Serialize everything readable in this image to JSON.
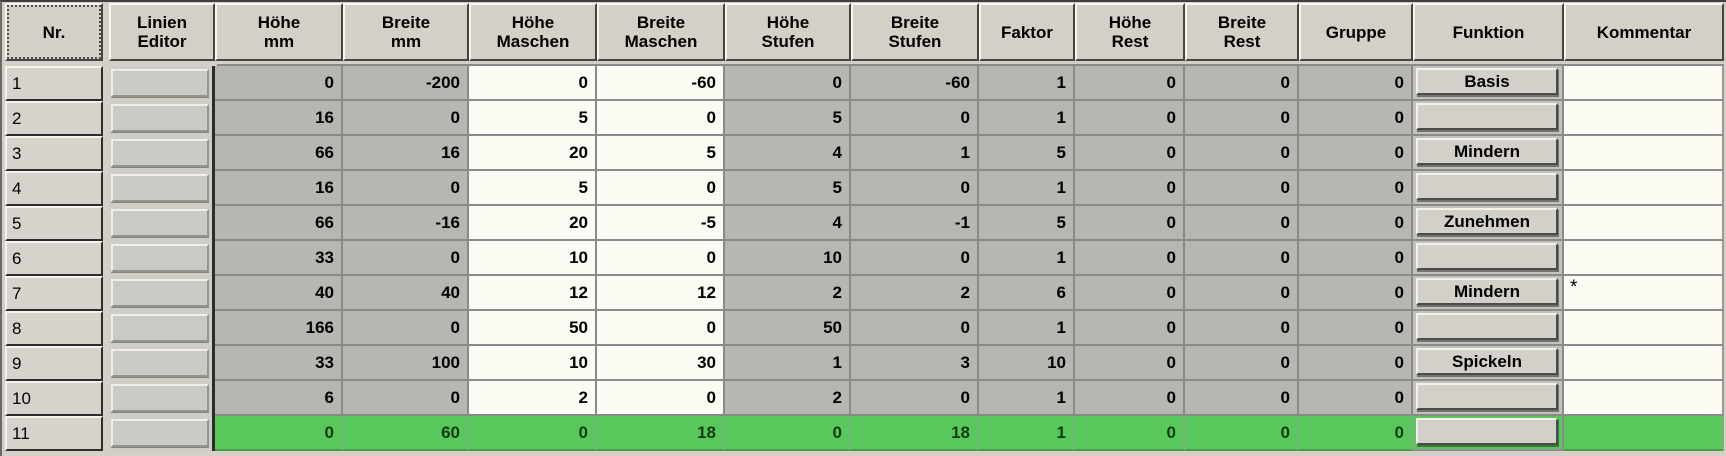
{
  "table": {
    "columns": [
      {
        "id": "nr",
        "label": "Nr."
      },
      {
        "id": "linien_editor",
        "label": "Linien\nEditor"
      },
      {
        "id": "hoehe_mm",
        "label": "Höhe\nmm"
      },
      {
        "id": "breite_mm",
        "label": "Breite\nmm"
      },
      {
        "id": "hoehe_maschen",
        "label": "Höhe\nMaschen"
      },
      {
        "id": "breite_maschen",
        "label": "Breite\nMaschen"
      },
      {
        "id": "hoehe_stufen",
        "label": "Höhe\nStufen"
      },
      {
        "id": "breite_stufen",
        "label": "Breite\nStufen"
      },
      {
        "id": "faktor",
        "label": "Faktor"
      },
      {
        "id": "hoehe_rest",
        "label": "Höhe\nRest"
      },
      {
        "id": "breite_rest",
        "label": "Breite\nRest"
      },
      {
        "id": "gruppe",
        "label": "Gruppe"
      },
      {
        "id": "funktion",
        "label": "Funktion"
      },
      {
        "id": "kommentar",
        "label": "Kommentar"
      }
    ],
    "value_column_ids": [
      "hoehe_mm",
      "breite_mm",
      "hoehe_maschen",
      "breite_maschen",
      "hoehe_stufen",
      "breite_stufen",
      "faktor",
      "hoehe_rest",
      "breite_rest",
      "gruppe"
    ],
    "white_column_ids": [
      "hoehe_maschen",
      "breite_maschen"
    ],
    "rows": [
      {
        "nr": "1",
        "hoehe_mm": "0",
        "breite_mm": "-200",
        "hoehe_maschen": "0",
        "breite_maschen": "-60",
        "hoehe_stufen": "0",
        "breite_stufen": "-60",
        "faktor": "1",
        "hoehe_rest": "0",
        "breite_rest": "0",
        "gruppe": "0",
        "funktion": "Basis",
        "kommentar": "",
        "highlight": false
      },
      {
        "nr": "2",
        "hoehe_mm": "16",
        "breite_mm": "0",
        "hoehe_maschen": "5",
        "breite_maschen": "0",
        "hoehe_stufen": "5",
        "breite_stufen": "0",
        "faktor": "1",
        "hoehe_rest": "0",
        "breite_rest": "0",
        "gruppe": "0",
        "funktion": "",
        "kommentar": "",
        "highlight": false
      },
      {
        "nr": "3",
        "hoehe_mm": "66",
        "breite_mm": "16",
        "hoehe_maschen": "20",
        "breite_maschen": "5",
        "hoehe_stufen": "4",
        "breite_stufen": "1",
        "faktor": "5",
        "hoehe_rest": "0",
        "breite_rest": "0",
        "gruppe": "0",
        "funktion": "Mindern",
        "kommentar": "",
        "highlight": false
      },
      {
        "nr": "4",
        "hoehe_mm": "16",
        "breite_mm": "0",
        "hoehe_maschen": "5",
        "breite_maschen": "0",
        "hoehe_stufen": "5",
        "breite_stufen": "0",
        "faktor": "1",
        "hoehe_rest": "0",
        "breite_rest": "0",
        "gruppe": "0",
        "funktion": "",
        "kommentar": "",
        "highlight": false
      },
      {
        "nr": "5",
        "hoehe_mm": "66",
        "breite_mm": "-16",
        "hoehe_maschen": "20",
        "breite_maschen": "-5",
        "hoehe_stufen": "4",
        "breite_stufen": "-1",
        "faktor": "5",
        "hoehe_rest": "0",
        "breite_rest": "0",
        "gruppe": "0",
        "funktion": "Zunehmen",
        "kommentar": "",
        "highlight": false
      },
      {
        "nr": "6",
        "hoehe_mm": "33",
        "breite_mm": "0",
        "hoehe_maschen": "10",
        "breite_maschen": "0",
        "hoehe_stufen": "10",
        "breite_stufen": "0",
        "faktor": "1",
        "hoehe_rest": "0",
        "breite_rest": "0",
        "gruppe": "0",
        "funktion": "",
        "kommentar": "",
        "highlight": false
      },
      {
        "nr": "7",
        "hoehe_mm": "40",
        "breite_mm": "40",
        "hoehe_maschen": "12",
        "breite_maschen": "12",
        "hoehe_stufen": "2",
        "breite_stufen": "2",
        "faktor": "6",
        "hoehe_rest": "0",
        "breite_rest": "0",
        "gruppe": "0",
        "funktion": "Mindern",
        "kommentar": "*",
        "highlight": false
      },
      {
        "nr": "8",
        "hoehe_mm": "166",
        "breite_mm": "0",
        "hoehe_maschen": "50",
        "breite_maschen": "0",
        "hoehe_stufen": "50",
        "breite_stufen": "0",
        "faktor": "1",
        "hoehe_rest": "0",
        "breite_rest": "0",
        "gruppe": "0",
        "funktion": "",
        "kommentar": "",
        "highlight": false
      },
      {
        "nr": "9",
        "hoehe_mm": "33",
        "breite_mm": "100",
        "hoehe_maschen": "10",
        "breite_maschen": "30",
        "hoehe_stufen": "1",
        "breite_stufen": "3",
        "faktor": "10",
        "hoehe_rest": "0",
        "breite_rest": "0",
        "gruppe": "0",
        "funktion": "Spickeln",
        "kommentar": "",
        "highlight": false
      },
      {
        "nr": "10",
        "hoehe_mm": "6",
        "breite_mm": "0",
        "hoehe_maschen": "2",
        "breite_maschen": "0",
        "hoehe_stufen": "2",
        "breite_stufen": "0",
        "faktor": "1",
        "hoehe_rest": "0",
        "breite_rest": "0",
        "gruppe": "0",
        "funktion": "",
        "kommentar": "",
        "highlight": false
      },
      {
        "nr": "11",
        "hoehe_mm": "0",
        "breite_mm": "60",
        "hoehe_maschen": "0",
        "breite_maschen": "18",
        "hoehe_stufen": "0",
        "breite_stufen": "18",
        "faktor": "1",
        "hoehe_rest": "0",
        "breite_rest": "0",
        "gruppe": "0",
        "funktion": "",
        "kommentar": "",
        "highlight": true
      }
    ],
    "colors": {
      "panel": "#d4d0c8",
      "cell_gray": "#b7b6b1",
      "cell_white": "#fbfbf4",
      "highlight_green": "#58c85c",
      "highlight_text": "#123c10",
      "grid_line": "#8a8a8a"
    }
  }
}
